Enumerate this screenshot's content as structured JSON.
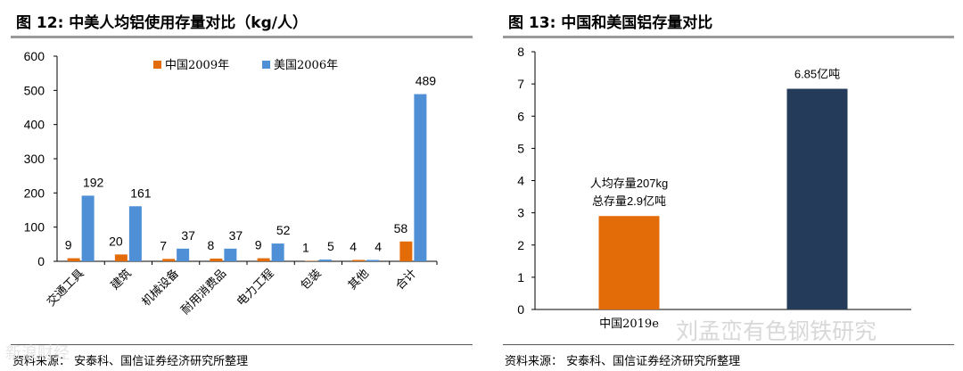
{
  "left": {
    "title": "图 12:  中美人均铝使用存量对比（kg/人）",
    "source": "资料来源：  安泰科、国信证券经济研究所整理",
    "chart_data": {
      "type": "bar",
      "categories": [
        "交通工具",
        "建筑",
        "机械设备",
        "耐用消费品",
        "电力工程",
        "包装",
        "其他",
        "合计"
      ],
      "series": [
        {
          "name": "中国2009年",
          "color": "#E36C09",
          "values": [
            9,
            20,
            7,
            8,
            9,
            1,
            4,
            58
          ]
        },
        {
          "name": "美国2006年",
          "color": "#4F8FD6",
          "values": [
            192,
            161,
            37,
            37,
            52,
            5,
            4,
            489
          ]
        }
      ],
      "ylim": [
        0,
        600
      ],
      "yticks": [
        0,
        100,
        200,
        300,
        400,
        500,
        600
      ],
      "legend": "top-center",
      "grid": false
    }
  },
  "right": {
    "title": "图 13:  中国和美国铝存量对比",
    "source": "资料来源：  安泰科、国信证券经济研究所整理",
    "chart_data": {
      "type": "bar",
      "categories": [
        "中国2019e",
        ""
      ],
      "values": [
        2.9,
        6.85
      ],
      "colors": [
        "#E36C09",
        "#243B5A"
      ],
      "annotations": [
        {
          "lines": [
            "人均存量207kg",
            "总存量2.9亿吨"
          ]
        },
        {
          "lines": [
            "6.85亿吨"
          ]
        }
      ],
      "ylim": [
        0,
        8
      ],
      "yticks": [
        0,
        1,
        2,
        3,
        4,
        5,
        6,
        7,
        8
      ],
      "grid": false
    }
  },
  "watermark": "刘孟峦有色钢铁研究",
  "watermark_small": "新浪财经"
}
